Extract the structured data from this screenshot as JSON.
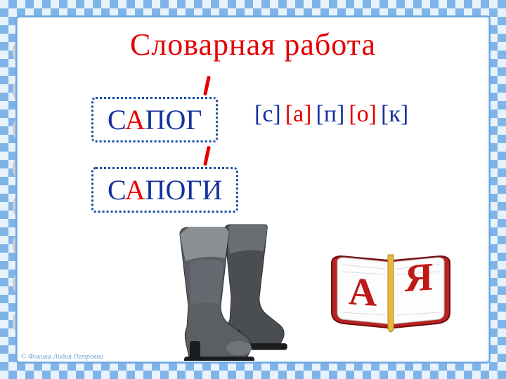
{
  "title": "Словарная  работа",
  "word1": {
    "pre": "С",
    "highlight": "А",
    "post": "ПОГ"
  },
  "word2": {
    "pre": "С",
    "highlight": "А",
    "post": "ПОГИ"
  },
  "phonemes": [
    {
      "text": "[с]",
      "color": "blue"
    },
    {
      "text": "[а]",
      "color": "red"
    },
    {
      "text": "[п]",
      "color": "blue"
    },
    {
      "text": "[о]",
      "color": "red"
    },
    {
      "text": "[к]",
      "color": "blue"
    }
  ],
  "boots": {
    "fill": "#5b5f64",
    "dark": "#3a3e42",
    "light": "#8b9095",
    "sole": "#1a1c1e"
  },
  "book": {
    "leftLetter": "А",
    "rightLetter": "Я",
    "letterColor": "#c01818",
    "coverColor": "#b82222",
    "pageColor": "#fdfdfd",
    "ribbon": "#e8b742"
  },
  "credit": "© Фокина Лидия Петровна",
  "style": {
    "titleColor": "#e60000",
    "blue": "#14319e",
    "red": "#e60000",
    "dottedBorder": "#1b4da6",
    "checker1": "#7fb4e8",
    "checker2": "#e8f2fb"
  }
}
